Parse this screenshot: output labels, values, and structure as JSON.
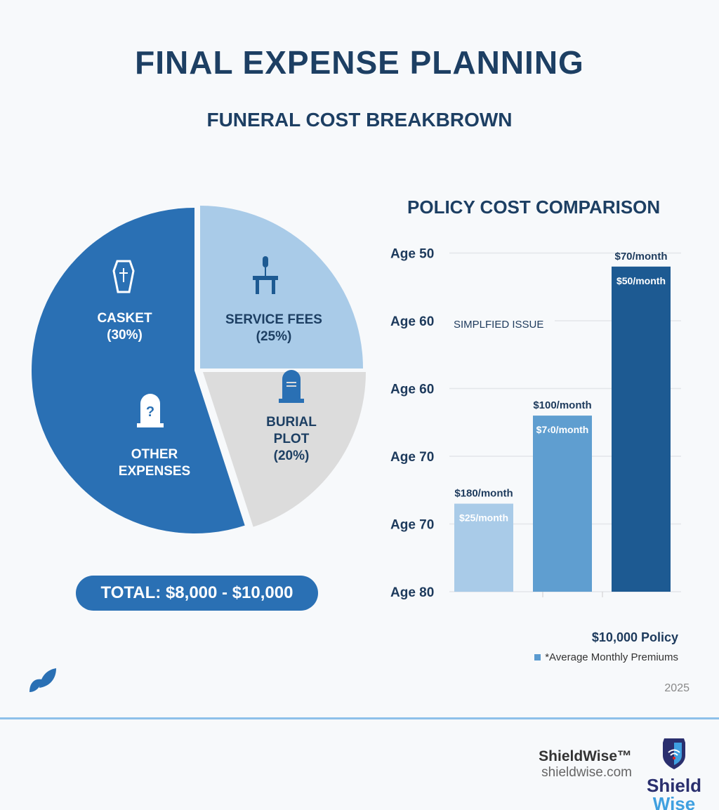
{
  "title": "FINAL EXPENSE PLANNING",
  "subtitle": "FUNERAL COST BREAKBROWN",
  "chart_data": [
    {
      "type": "pie",
      "slices": [
        {
          "label": "CASKET",
          "pct_label": "(30%)",
          "icon": "coffin-icon",
          "color": "#2a70b4"
        },
        {
          "label": "OTHER EXPENSES",
          "icon": "question-tombstone-icon",
          "color": "#2a70b4"
        },
        {
          "label": "SERVICE FEES",
          "pct_label": "(25%)",
          "value": 25,
          "icon": "podium-microphone-icon",
          "color": "#a9cbe8"
        },
        {
          "label": "BURIAL PLOT",
          "pct_label": "(20%)",
          "value": 20,
          "icon": "tombstone-icon",
          "color": "#dcdcdc"
        }
      ],
      "dark_region_value": 55,
      "total": "TOTAL: $8,000 - $10,000"
    },
    {
      "type": "bar",
      "title": "POLICY COST COMPARISON",
      "y_tick_labels": [
        "Age 80",
        "Age 70",
        "Age 70",
        "Age 60",
        "Age 60",
        "Age 50"
      ],
      "annotation": "SIMPLFIED ISSUE",
      "bars": [
        {
          "top_label": "$180/month",
          "inner_label": "$25/month",
          "level": 1.3,
          "color": "#a9cbe8"
        },
        {
          "top_label": "$100/month",
          "inner_label": "$7‹0/month",
          "level": 2.6,
          "color": "#5f9ed0"
        },
        {
          "top_label": "$70/month",
          "inner_label": "$50/month",
          "level": 4.8,
          "color": "#1d5a92"
        }
      ],
      "grid": true,
      "xlabel": "$10,000 Policy",
      "legend": "*Average Monthly Premiums",
      "legend_placement": "bottom-right"
    }
  ],
  "year": "2025",
  "brand": {
    "name": "ShieldWise™",
    "url": "shieldwise.com",
    "logo_text": "Shield",
    "logo_text2": "Wise"
  }
}
